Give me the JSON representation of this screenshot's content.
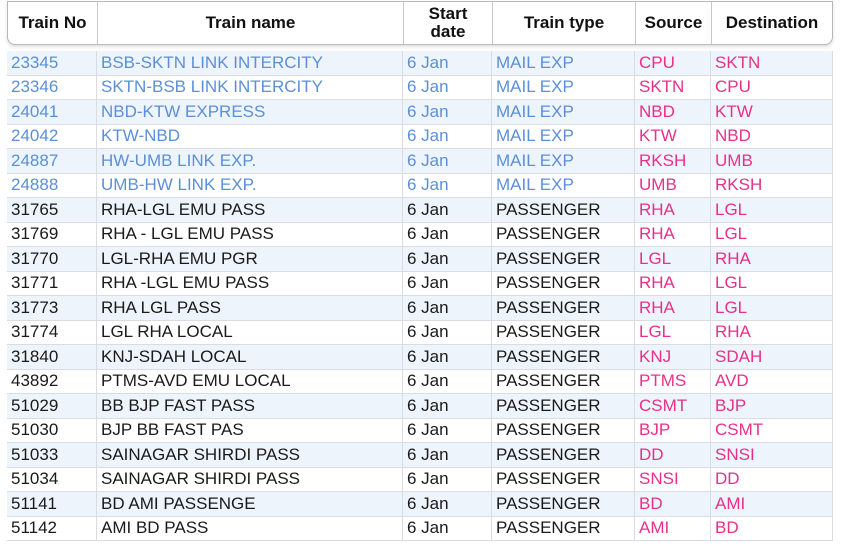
{
  "table": {
    "headers": {
      "train_no": "Train No",
      "train_name": "Train name",
      "start_date": "Start\ndate",
      "train_type": "Train type",
      "source": "Source",
      "destination": "Destination"
    },
    "rows": [
      {
        "no": "23345",
        "name": "BSB-SKTN LINK INTERCITY",
        "date": "6 Jan",
        "type": "MAIL EXP",
        "src": "CPU",
        "dst": "SKTN",
        "style": "link"
      },
      {
        "no": "23346",
        "name": "SKTN-BSB LINK INTERCITY",
        "date": "6 Jan",
        "type": "MAIL EXP",
        "src": "SKTN",
        "dst": "CPU",
        "style": "link"
      },
      {
        "no": "24041",
        "name": "NBD-KTW EXPRESS",
        "date": "6 Jan",
        "type": "MAIL EXP",
        "src": "NBD",
        "dst": "KTW",
        "style": "link"
      },
      {
        "no": "24042",
        "name": "KTW-NBD",
        "date": "6 Jan",
        "type": "MAIL EXP",
        "src": "KTW",
        "dst": "NBD",
        "style": "link"
      },
      {
        "no": "24887",
        "name": "HW-UMB LINK EXP.",
        "date": "6 Jan",
        "type": "MAIL EXP",
        "src": "RKSH",
        "dst": "UMB",
        "style": "link"
      },
      {
        "no": "24888",
        "name": "UMB-HW LINK EXP.",
        "date": "6 Jan",
        "type": "MAIL EXP",
        "src": "UMB",
        "dst": "RKSH",
        "style": "link"
      },
      {
        "no": "31765",
        "name": "RHA-LGL EMU PASS",
        "date": "6 Jan",
        "type": "PASSENGER",
        "src": "RHA",
        "dst": "LGL",
        "style": "plain"
      },
      {
        "no": "31769",
        "name": "RHA - LGL EMU PASS",
        "date": "6 Jan",
        "type": "PASSENGER",
        "src": "RHA",
        "dst": "LGL",
        "style": "plain"
      },
      {
        "no": "31770",
        "name": "LGL-RHA EMU PGR",
        "date": "6 Jan",
        "type": "PASSENGER",
        "src": "LGL",
        "dst": "RHA",
        "style": "plain"
      },
      {
        "no": "31771",
        "name": "RHA -LGL EMU PASS",
        "date": "6 Jan",
        "type": "PASSENGER",
        "src": "RHA",
        "dst": "LGL",
        "style": "plain"
      },
      {
        "no": "31773",
        "name": "RHA LGL PASS",
        "date": "6 Jan",
        "type": "PASSENGER",
        "src": "RHA",
        "dst": "LGL",
        "style": "plain"
      },
      {
        "no": "31774",
        "name": "LGL RHA LOCAL",
        "date": "6 Jan",
        "type": "PASSENGER",
        "src": "LGL",
        "dst": "RHA",
        "style": "plain"
      },
      {
        "no": "31840",
        "name": "KNJ-SDAH LOCAL",
        "date": "6 Jan",
        "type": "PASSENGER",
        "src": "KNJ",
        "dst": "SDAH",
        "style": "plain"
      },
      {
        "no": "43892",
        "name": "PTMS-AVD EMU LOCAL",
        "date": "6 Jan",
        "type": "PASSENGER",
        "src": "PTMS",
        "dst": "AVD",
        "style": "plain"
      },
      {
        "no": "51029",
        "name": "BB BJP FAST PASS",
        "date": "6 Jan",
        "type": "PASSENGER",
        "src": "CSMT",
        "dst": "BJP",
        "style": "plain"
      },
      {
        "no": "51030",
        "name": "BJP BB FAST PAS",
        "date": "6 Jan",
        "type": "PASSENGER",
        "src": "BJP",
        "dst": "CSMT",
        "style": "plain"
      },
      {
        "no": "51033",
        "name": "SAINAGAR SHIRDI PASS",
        "date": "6 Jan",
        "type": "PASSENGER",
        "src": "DD",
        "dst": "SNSI",
        "style": "plain"
      },
      {
        "no": "51034",
        "name": "SAINAGAR SHIRDI PASS",
        "date": "6 Jan",
        "type": "PASSENGER",
        "src": "SNSI",
        "dst": "DD",
        "style": "plain"
      },
      {
        "no": "51141",
        "name": "BD AMI PASSENGE",
        "date": "6 Jan",
        "type": "PASSENGER",
        "src": "BD",
        "dst": "AMI",
        "style": "plain"
      },
      {
        "no": "51142",
        "name": "AMI BD PASS",
        "date": "6 Jan",
        "type": "PASSENGER",
        "src": "AMI",
        "dst": "BD",
        "style": "plain"
      }
    ]
  },
  "colors": {
    "link_text": "#5b8fd9",
    "station_text": "#e8308a",
    "row_alt_bg": "#eef4fb",
    "header_text": "#111111"
  }
}
